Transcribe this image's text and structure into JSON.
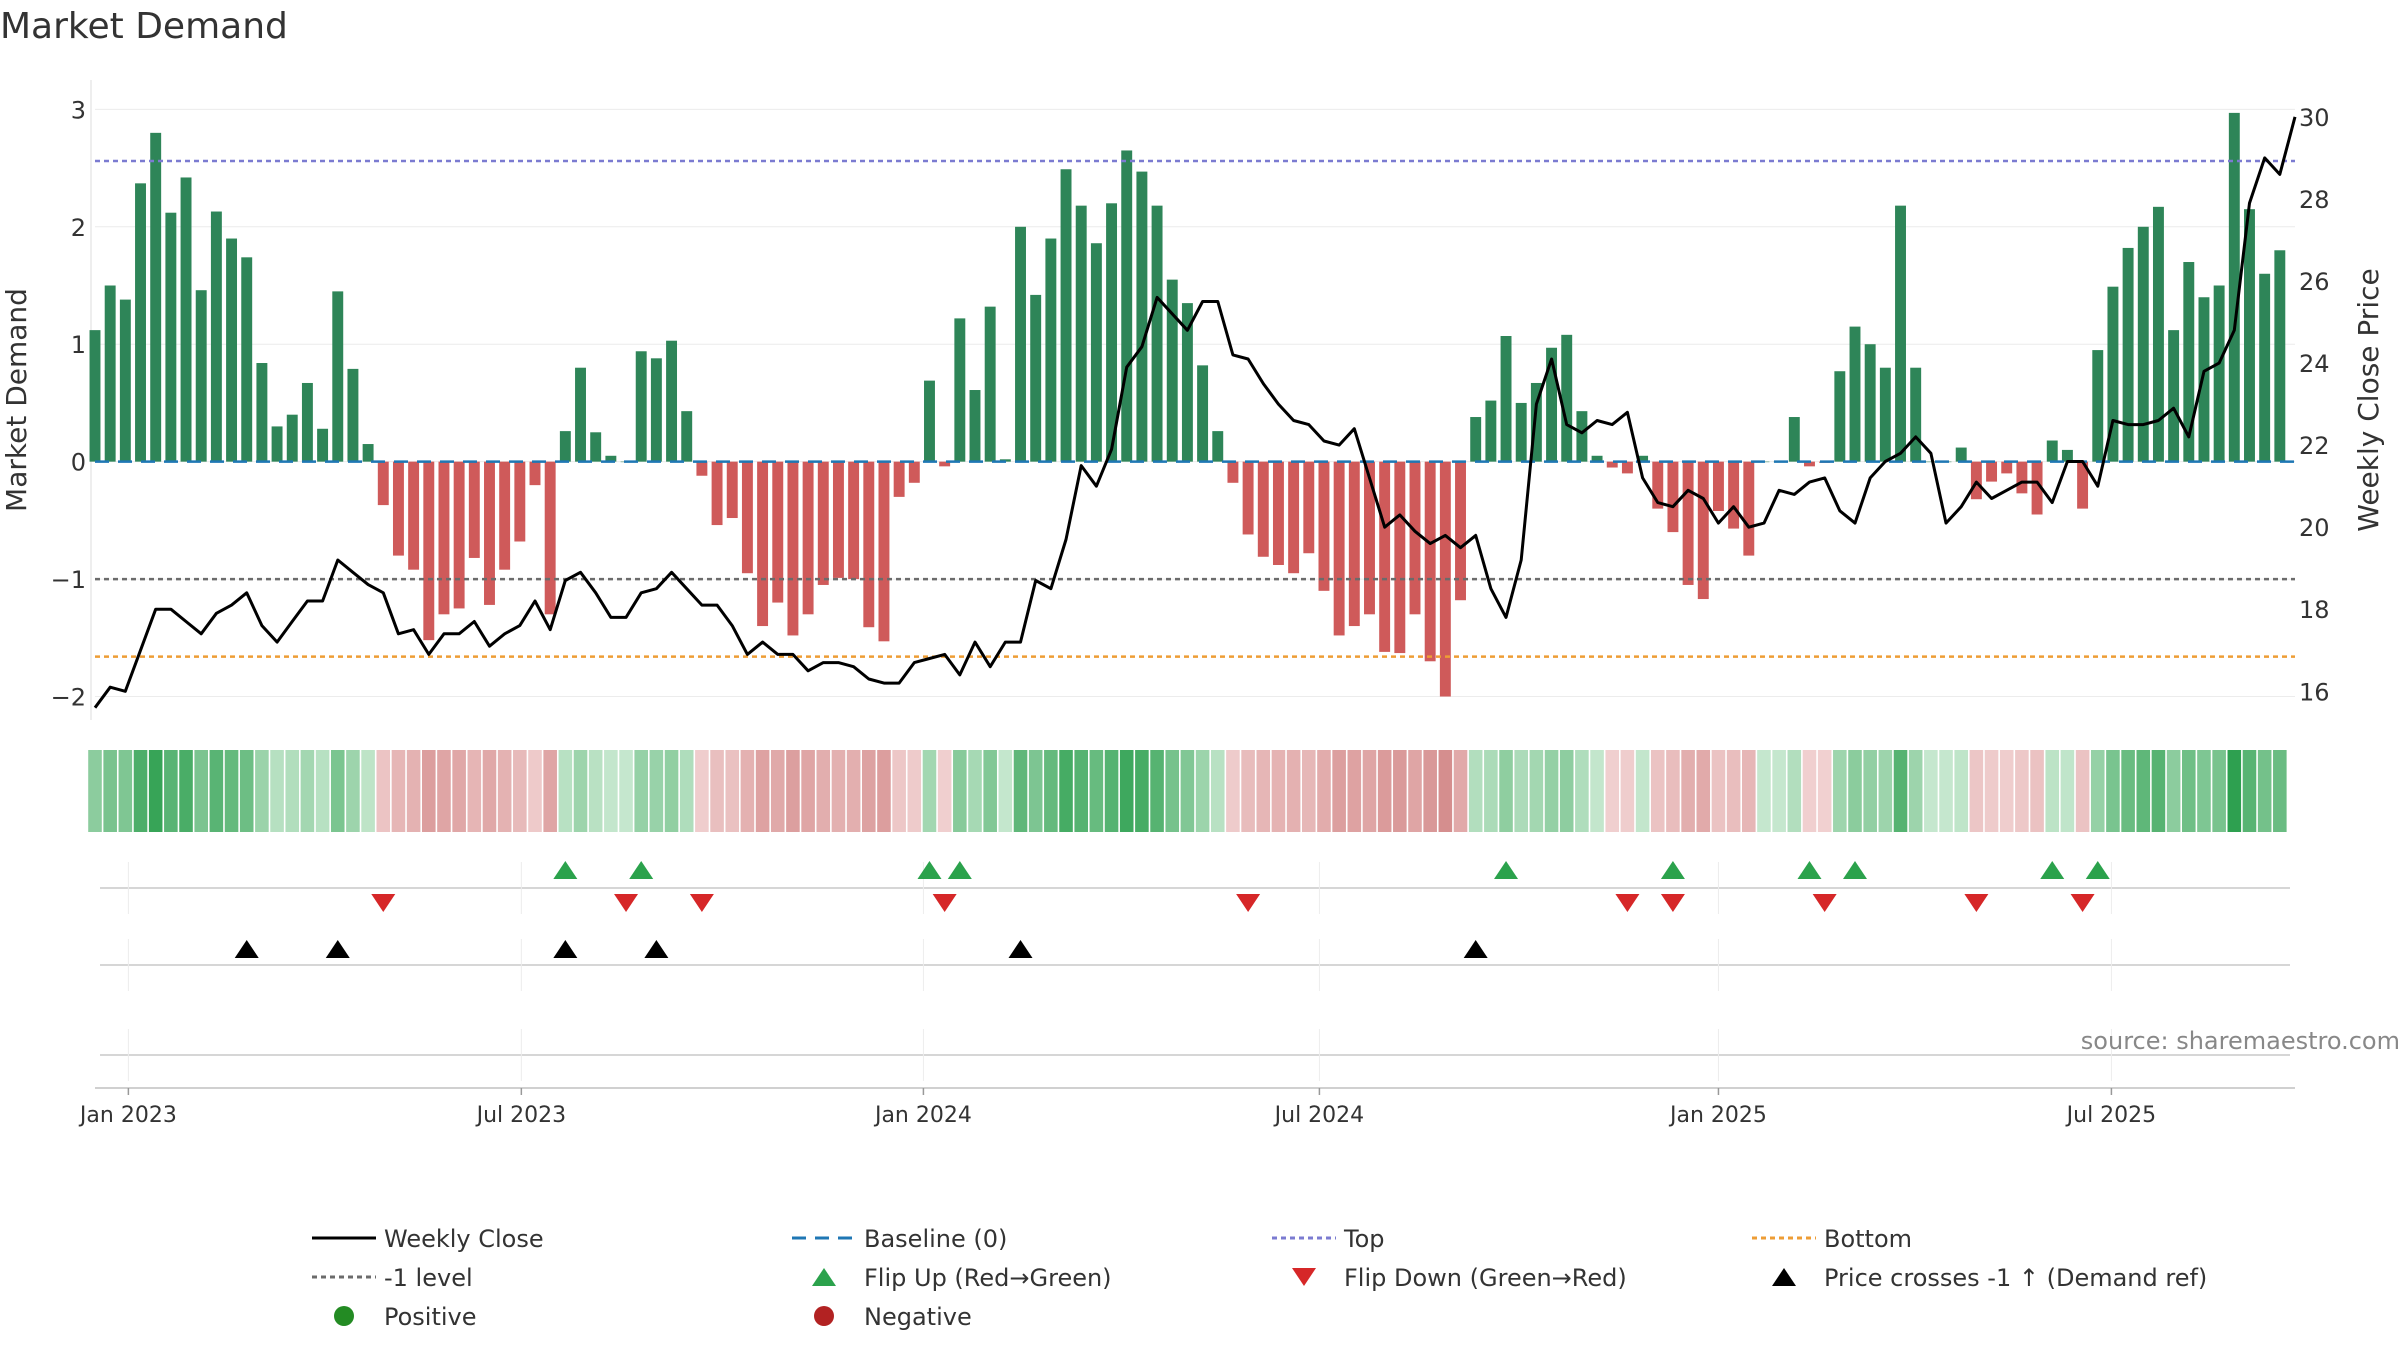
{
  "chart_data": {
    "type": "bar",
    "title": "Market Demand",
    "xlabel": "",
    "ylabel": "Market Demand",
    "y2label": "Weekly Close Price",
    "ylim": [
      -2.2,
      3.25
    ],
    "y2lim": [
      15.3,
      30.9
    ],
    "yticks": [
      -2,
      -1,
      0,
      1,
      2,
      3
    ],
    "y2ticks": [
      16,
      18,
      20,
      22,
      24,
      26,
      28,
      30
    ],
    "tick_labels": {
      "y": [
        "−2",
        "−1",
        "0",
        "1",
        "2",
        "3"
      ],
      "y2": [
        "16",
        "18",
        "20",
        "22",
        "24",
        "26",
        "28",
        "30"
      ]
    },
    "reference_lines": {
      "top": 2.56,
      "minus_one": -1.0,
      "bottom": -1.66,
      "baseline": 0
    },
    "x_range_weeks": [
      0,
      145
    ],
    "first_week_date": "2022-12-12",
    "date_ticks": [
      {
        "label": "Jan 2023",
        "week": 2.2
      },
      {
        "label": "Jul 2023",
        "week": 28.1
      },
      {
        "label": "Jan 2024",
        "week": 54.6
      },
      {
        "label": "Jul 2024",
        "week": 80.7
      },
      {
        "label": "Jan 2025",
        "week": 107.0
      },
      {
        "label": "Jul 2025",
        "week": 132.9
      }
    ],
    "demand": [
      1.12,
      1.5,
      1.38,
      2.37,
      2.8,
      2.12,
      2.42,
      1.46,
      2.13,
      1.9,
      1.74,
      0.84,
      0.3,
      0.4,
      0.67,
      0.28,
      1.45,
      0.79,
      0.15,
      -0.37,
      -0.8,
      -0.92,
      -1.52,
      -1.3,
      -1.25,
      -0.82,
      -1.22,
      -0.92,
      -0.68,
      -0.2,
      -1.3,
      0.26,
      0.8,
      0.25,
      0.05,
      0.0,
      0.94,
      0.88,
      1.03,
      0.43,
      -0.12,
      -0.54,
      -0.48,
      -0.95,
      -1.4,
      -1.2,
      -1.48,
      -1.3,
      -1.05,
      -0.99,
      -1.0,
      -1.41,
      -1.53,
      -0.3,
      -0.18,
      0.69,
      -0.04,
      1.22,
      0.61,
      1.32,
      0.02,
      2.0,
      1.42,
      1.9,
      2.49,
      2.18,
      1.86,
      2.2,
      2.65,
      2.47,
      2.18,
      1.55,
      1.35,
      0.82,
      0.26,
      -0.18,
      -0.62,
      -0.81,
      -0.88,
      -0.95,
      -0.78,
      -1.1,
      -1.48,
      -1.4,
      -1.3,
      -1.62,
      -1.63,
      -1.3,
      -1.7,
      -2.0,
      -1.18,
      0.38,
      0.52,
      1.07,
      0.5,
      0.67,
      0.97,
      1.08,
      0.43,
      0.05,
      -0.05,
      -0.1,
      0.05,
      -0.4,
      -0.6,
      -1.05,
      -1.17,
      -0.42,
      -0.57,
      -0.8,
      0.0,
      0.0,
      0.38,
      -0.04,
      -0.01,
      0.77,
      1.15,
      1.0,
      0.8,
      2.18,
      0.8,
      0.0,
      0.0,
      0.12,
      -0.32,
      -0.17,
      -0.1,
      -0.27,
      -0.45,
      0.18,
      0.1,
      -0.4,
      0.95,
      1.49,
      1.82,
      2.0,
      2.17,
      1.12,
      1.7,
      1.4,
      1.5,
      2.97,
      2.15,
      1.6,
      1.8
    ],
    "weekly_close": [
      15.6,
      16.1,
      16.0,
      17.0,
      18.0,
      18.0,
      17.7,
      17.4,
      17.9,
      18.1,
      18.4,
      17.6,
      17.2,
      17.7,
      18.2,
      18.2,
      19.2,
      18.9,
      18.6,
      18.4,
      17.4,
      17.5,
      16.9,
      17.4,
      17.4,
      17.7,
      17.1,
      17.4,
      17.6,
      18.2,
      17.5,
      18.7,
      18.9,
      18.4,
      17.8,
      17.8,
      18.4,
      18.5,
      18.9,
      18.5,
      18.1,
      18.1,
      17.6,
      16.9,
      17.2,
      16.9,
      16.9,
      16.5,
      16.7,
      16.7,
      16.6,
      16.3,
      16.2,
      16.2,
      16.7,
      16.8,
      16.9,
      16.4,
      17.2,
      16.6,
      17.2,
      17.2,
      18.7,
      18.5,
      19.7,
      21.5,
      21.0,
      21.9,
      23.9,
      24.4,
      25.6,
      25.2,
      24.8,
      25.5,
      25.5,
      24.2,
      24.1,
      23.5,
      23.0,
      22.6,
      22.5,
      22.1,
      22.0,
      22.4,
      21.2,
      20.0,
      20.3,
      19.9,
      19.6,
      19.8,
      19.5,
      19.8,
      18.5,
      17.8,
      19.2,
      23.0,
      24.1,
      22.5,
      22.3,
      22.6,
      22.5,
      22.8,
      21.2,
      20.6,
      20.5,
      20.9,
      20.7,
      20.1,
      20.5,
      20.0,
      20.1,
      20.9,
      20.8,
      21.1,
      21.2,
      20.4,
      20.1,
      21.2,
      21.6,
      21.8,
      22.2,
      21.8,
      20.1,
      20.5,
      21.1,
      20.7,
      20.9,
      21.1,
      21.1,
      20.6,
      21.6,
      21.6,
      21.0,
      22.6,
      22.5,
      22.5,
      22.6,
      22.9,
      22.2,
      23.8,
      24.0,
      24.8,
      27.9,
      29.0,
      28.6,
      30.0
    ],
    "flip_up_weeks": [
      31,
      36,
      55,
      57,
      93,
      104,
      113,
      116,
      129,
      132
    ],
    "flip_down_weeks": [
      19,
      35,
      40,
      56,
      76,
      101,
      104,
      114,
      124,
      131
    ],
    "price_cross_weeks": [
      10,
      16,
      31,
      37,
      61,
      91
    ],
    "colors": {
      "positive_bar": "#2e8558",
      "negative_bar": "#cf5a5a",
      "weekly_close": "#000000",
      "baseline": "#1f77b4",
      "top": "#7b7bd1",
      "minus_one": "#6b6b6b",
      "bottom": "#ee9d35",
      "flip_up": "#2ba24c",
      "flip_down": "#d62728",
      "price_cross": "#000000",
      "positive_dot": "#238b23",
      "negative_dot": "#b22222",
      "source": "#888888"
    },
    "legend": [
      {
        "label": "Weekly Close",
        "kind": "line",
        "color": "#000000"
      },
      {
        "label": "Baseline (0)",
        "kind": "dash",
        "color": "#1f77b4"
      },
      {
        "label": "Top",
        "kind": "dot",
        "color": "#7b7bd1"
      },
      {
        "label": "Bottom",
        "kind": "dot",
        "color": "#ee9d35"
      },
      {
        "label": "-1 level",
        "kind": "dot",
        "color": "#6b6b6b"
      },
      {
        "label": "Flip Up (Red→Green)",
        "kind": "tri-up",
        "color": "#2ba24c"
      },
      {
        "label": "Flip Down (Green→Red)",
        "kind": "tri-down",
        "color": "#d62728"
      },
      {
        "label": "Price crosses -1 ↑ (Demand ref)",
        "kind": "tri-up",
        "color": "#000000"
      },
      {
        "label": "Positive",
        "kind": "circle",
        "color": "#238b23"
      },
      {
        "label": "Negative",
        "kind": "circle",
        "color": "#b22222"
      }
    ],
    "legend_placement": "bottom",
    "source_text": "source: sharemaestro.com"
  }
}
